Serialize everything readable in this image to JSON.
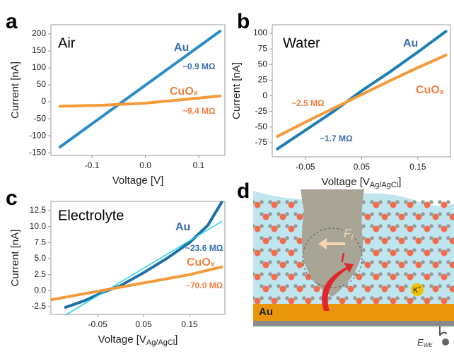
{
  "chart_data": [
    {
      "type": "line",
      "panel": "a",
      "title": "Air",
      "xlabel": "Voltage  [V]",
      "ylabel": "Current  [nA]",
      "xlim": [
        -0.177,
        0.149
      ],
      "ylim": [
        -158,
        227
      ],
      "xticks": [
        -0.1,
        {
          "value": 0,
          "label": "0.0"
        },
        0.1
      ],
      "yticks": [
        -150,
        -100,
        -50,
        0,
        50,
        100,
        150,
        200
      ],
      "series": [
        {
          "name": "Au",
          "color": "#2b8cc4",
          "x": [
            -0.16,
            0.14
          ],
          "values": [
            -133,
            208
          ]
        },
        {
          "name": "CuOₓ",
          "color": "#f39a3a",
          "x": [
            -0.16,
            -0.08,
            0,
            0.08,
            0.14
          ],
          "values": [
            -13,
            -10,
            -4,
            8,
            17
          ]
        }
      ],
      "annotations": [
        "~0.9 MΩ",
        "~9.4 MΩ"
      ]
    },
    {
      "type": "line",
      "panel": "b",
      "title": "Water",
      "xlabel": "Voltage  [V",
      "xlabel_subscript": "Ag/AgCl",
      "xlabel_end": "]",
      "ylabel": "Current  [nA]",
      "xlim": [
        -0.109,
        0.208
      ],
      "ylim": [
        -97.6,
        113.6
      ],
      "xticks": [
        -0.05,
        0.05,
        0.15
      ],
      "yticks": [
        -75,
        -50,
        -25,
        0,
        25,
        50,
        75,
        100
      ],
      "series": [
        {
          "name": "Au",
          "color": "#1f7fb0",
          "x": [
            -0.1,
            -0.05,
            0,
            0.05,
            0.1,
            0.15,
            0.2
          ],
          "values": [
            -85,
            -55,
            -25,
            8,
            38,
            70,
            103
          ]
        },
        {
          "name": "CuOₓ",
          "color": "#f39a3a",
          "x": [
            -0.1,
            -0.05,
            0,
            0.05,
            0.1,
            0.15,
            0.2
          ],
          "values": [
            -65,
            -42,
            -20,
            2,
            24,
            45,
            65
          ]
        }
      ],
      "annotations": [
        "~2.5 MΩ",
        "~1.7 MΩ"
      ]
    },
    {
      "type": "line",
      "panel": "c",
      "title": "Electrolyte",
      "xlabel": "Voltage  [V",
      "xlabel_subscript": "Ag/AgCl",
      "xlabel_end": "]",
      "ylabel": "Current  [nA]",
      "xlim": [
        -0.152,
        0.227
      ],
      "ylim": [
        -3.71,
        13.93
      ],
      "xticks": [
        -0.05,
        0.05,
        0.15
      ],
      "yticks": [
        -2.5,
        {
          "value": 0,
          "label": "0.0"
        },
        2.5,
        {
          "value": 5,
          "label": "5.0"
        },
        7.5,
        {
          "value": 10,
          "label": "10.0"
        },
        12.5
      ],
      "series": [
        {
          "name": "Au",
          "color": "#1f6fa8",
          "x": [
            -0.12,
            -0.08,
            -0.04,
            0,
            0.05,
            0.1,
            0.15,
            0.19,
            0.22
          ],
          "values": [
            -2.6,
            -1.6,
            -0.3,
            0.8,
            2.8,
            5.0,
            7.5,
            10.2,
            13.8
          ]
        },
        {
          "color": "#22d3e6",
          "x": [
            -0.12,
            0.22
          ],
          "values": [
            -3.8,
            10.8
          ]
        },
        {
          "name": "CuOₓ",
          "color": "#f39a3a",
          "x": [
            -0.15,
            -0.05,
            0.05,
            0.15,
            0.22
          ],
          "values": [
            -1.4,
            -0.1,
            1.2,
            2.5,
            3.7
          ]
        }
      ],
      "annotations": [
        "~23.6 MΩ",
        "~70.0 MΩ"
      ]
    }
  ],
  "diagram": {
    "panel": "d",
    "electrode": "Au",
    "force": "F",
    "force_subscript": "f",
    "current": "I",
    "ion": "K",
    "ion_charge": "+",
    "potential": "E",
    "potential_subscript": "WE"
  }
}
